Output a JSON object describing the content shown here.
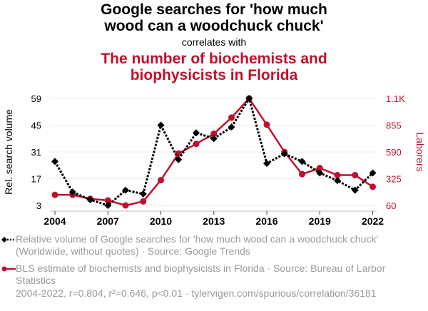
{
  "header": {
    "title_line1": "Google searches for 'how much",
    "title_line2": "wood can a woodchuck chuck'",
    "correlates": "correlates with",
    "subtitle_line1": "The number of biochemists and",
    "subtitle_line2": "biophysicists in Florida"
  },
  "colors": {
    "series1": "#000000",
    "series2": "#c0102c",
    "muted_text": "#9a9a9a",
    "grid": "#eeeeee"
  },
  "legend": {
    "series1_text": "Relative volume of Google searches for 'how much wood can a woodchuck chuck' (Worldwide, without quotes) · Source: Google Trends",
    "series2_text": "BLS estimate of biochemists and biophysicists in Florida · Source: Bureau of Larbor Statistics"
  },
  "footer": "2004-2022, r=0.804, r²=0.646, p<0.01 · tylervigen.com/spurious/correlation/36181",
  "chart_data": {
    "type": "line",
    "title": "Google searches for 'how much wood can a woodchuck chuck' correlates with The number of biochemists and biophysicists in Florida",
    "x": [
      2004,
      2005,
      2006,
      2007,
      2008,
      2009,
      2010,
      2011,
      2012,
      2013,
      2014,
      2015,
      2016,
      2017,
      2018,
      2019,
      2020,
      2021,
      2022
    ],
    "x_ticks": [
      "2004",
      "2007",
      "2010",
      "2013",
      "2016",
      "2019",
      "2022"
    ],
    "xlim": [
      2004,
      2022
    ],
    "ylabel_left": "Rel. search volume",
    "ylabel_right": "Laborers",
    "ylim_left": [
      3,
      59
    ],
    "ylim_right": [
      60,
      1120
    ],
    "y_ticks_left": [
      "3",
      "17",
      "31",
      "45",
      "59"
    ],
    "y_ticks_right": [
      "60",
      "325",
      "590",
      "855",
      "1.1K"
    ],
    "grid": true,
    "series": [
      {
        "name": "Relative volume of Google searches for 'how much wood can a woodchuck chuck'",
        "axis": "left",
        "style": "dotted-diamond",
        "values": [
          26,
          10,
          6,
          3,
          11,
          9,
          45,
          27,
          41,
          38,
          44,
          59,
          25,
          30,
          26,
          20,
          16,
          11,
          20
        ]
      },
      {
        "name": "BLS estimate of biochemists and biophysicists in Florida",
        "axis": "right",
        "style": "solid-circle",
        "values": [
          165,
          165,
          125,
          110,
          60,
          100,
          310,
          575,
          670,
          770,
          930,
          1120,
          860,
          590,
          370,
          430,
          360,
          360,
          245
        ]
      }
    ]
  }
}
